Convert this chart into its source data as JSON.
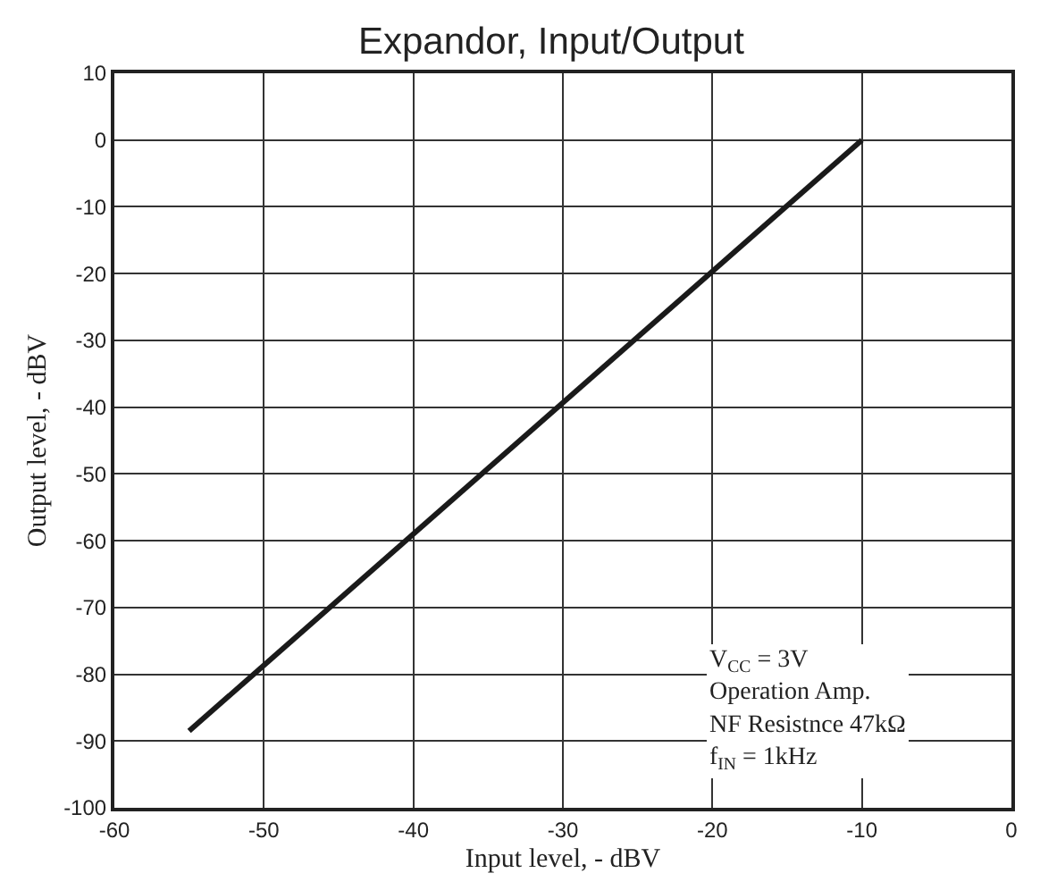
{
  "chart_data": {
    "type": "line",
    "title": "Expandor, Input/Output",
    "xlabel": "Input level, - dBV",
    "ylabel": "Output level, - dBV",
    "x": [
      -55,
      -10
    ],
    "series": [
      {
        "color": "#1a1a1a",
        "values": [
          -88.5,
          0
        ]
      }
    ],
    "xlim": [
      -60,
      0
    ],
    "xticks": [
      -60,
      -50,
      -40,
      -30,
      -20,
      -10,
      0
    ],
    "ylim": [
      -100,
      10
    ],
    "yticks": [
      -100,
      -90,
      -80,
      -70,
      -60,
      -50,
      -40,
      -30,
      -20,
      -10,
      0,
      10
    ],
    "grid": true,
    "marker": "none",
    "line_style": "solid",
    "annotations": [
      "V$_{CC}$ = 3V\nOperation Amp.\nNF Resistnce 47kΩ\nf$_{IN}$ = 1kHz"
    ]
  }
}
